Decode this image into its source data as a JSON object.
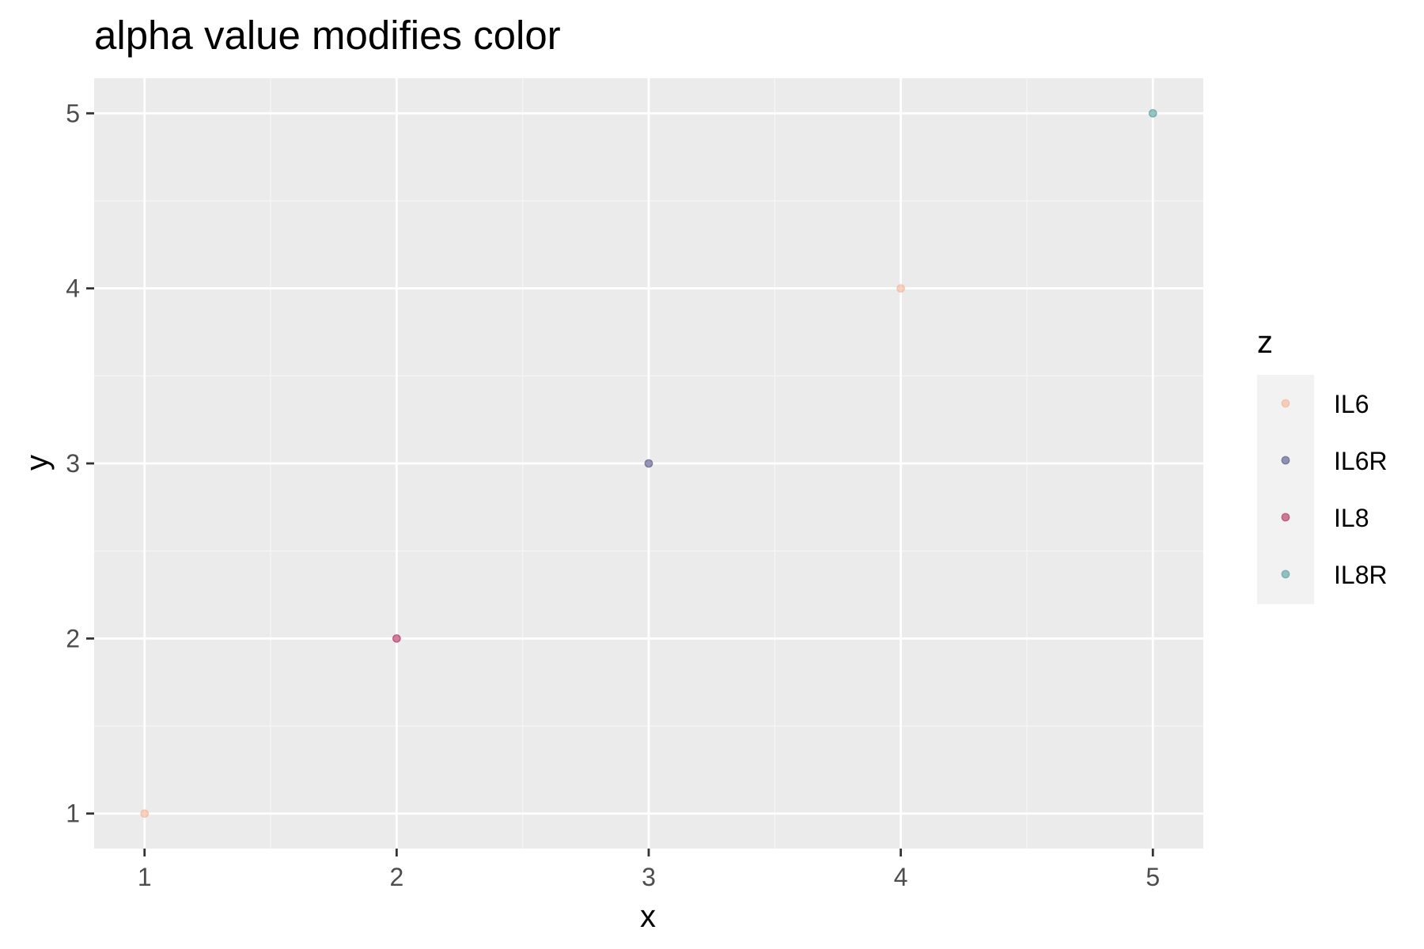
{
  "title": "alpha value modifies color",
  "chart_data": {
    "type": "scatter",
    "title": "alpha value modifies color",
    "xlabel": "x",
    "ylabel": "y",
    "xlim": [
      0.8,
      5.2
    ],
    "ylim": [
      0.8,
      5.2
    ],
    "x_ticks": [
      1,
      2,
      3,
      4,
      5
    ],
    "y_ticks": [
      1,
      2,
      3,
      4,
      5
    ],
    "x_tick_labels": [
      "1",
      "2",
      "3",
      "4",
      "5"
    ],
    "y_tick_labels": [
      "1",
      "2",
      "3",
      "4",
      "5"
    ],
    "grid": true,
    "point_alpha": 0.5,
    "legend": {
      "title": "z",
      "placement": "right",
      "entries": [
        {
          "label": "IL6",
          "color": "#F4A582"
        },
        {
          "label": "IL6R",
          "color": "#2D2F6B"
        },
        {
          "label": "IL8",
          "color": "#A3003C"
        },
        {
          "label": "IL8R",
          "color": "#2E8B87"
        }
      ]
    },
    "points": [
      {
        "x": 1,
        "y": 1,
        "z": "IL6"
      },
      {
        "x": 2,
        "y": 2,
        "z": "IL8"
      },
      {
        "x": 3,
        "y": 3,
        "z": "IL6R"
      },
      {
        "x": 4,
        "y": 4,
        "z": "IL6"
      },
      {
        "x": 5,
        "y": 5,
        "z": "IL8R"
      }
    ]
  },
  "colors": {
    "panel_background": "#EBEBEB",
    "grid_major": "#FFFFFF",
    "grid_minor": "#F5F5F5",
    "legend_key_background": "#F2F2F2",
    "tick_mark": "#333333"
  }
}
